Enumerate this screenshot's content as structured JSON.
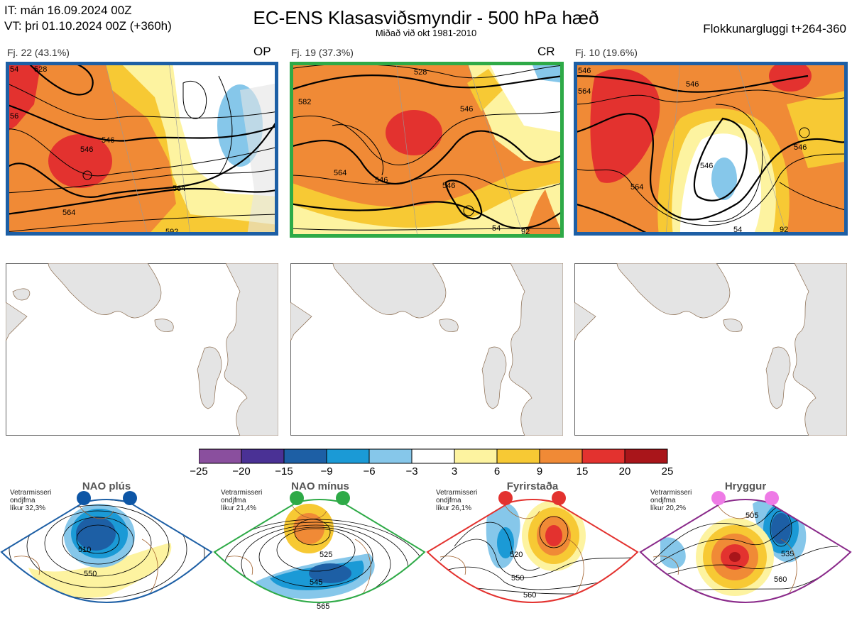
{
  "header": {
    "it_line": "IT: mán 16.09.2024 00Z",
    "vt_line": "VT: þri 01.10.2024 00Z  (+360h)",
    "title": "EC-ENS Klasasviðsmyndir - 500 hPa hæð",
    "subtitle": "Miðað við okt 1981-2010",
    "window": "Flokkunargluggi t+264-360"
  },
  "clusters": [
    {
      "label": "Fj. 22 (43.1%)",
      "tag": "OP",
      "frame_color": "#1d5fa5",
      "contour_labels": [
        "546",
        "546",
        "564",
        "564",
        "528",
        "54",
        "56",
        "592"
      ]
    },
    {
      "label": "Fj. 19 (37.3%)",
      "tag": "CR",
      "frame_color": "#2eaa47",
      "contour_labels": [
        "582",
        "546",
        "564",
        "546",
        "546",
        "528",
        "54",
        "92"
      ]
    },
    {
      "label": "Fj. 10 (19.6%)",
      "tag": "",
      "frame_color": "#1d5fa5",
      "contour_labels": [
        "546",
        "564",
        "546",
        "546",
        "564",
        "546",
        "54",
        "92"
      ]
    }
  ],
  "colorbar": {
    "labels": [
      "−25",
      "−20",
      "−15",
      "−9",
      "−6",
      "−3",
      "3",
      "6",
      "9",
      "15",
      "20",
      "25"
    ],
    "colors": [
      "#8a4f9e",
      "#4a3195",
      "#1d5fa5",
      "#1b9ad6",
      "#86c7ea",
      "#ffffff",
      "#fdf3a0",
      "#f7c934",
      "#f08a36",
      "#e3322f",
      "#a9151a"
    ]
  },
  "regimes": [
    {
      "name": "NAO plús",
      "info": [
        "Vetrarmisseri",
        "ondjfma",
        "líkur 32,3%"
      ],
      "color": "#1d5fa5",
      "dot": "#0d56a6",
      "contour_labels": [
        "510",
        "550"
      ]
    },
    {
      "name": "NAO mínus",
      "info": [
        "Vetrarmisseri",
        "ondjfma",
        "líkur 21,4%"
      ],
      "color": "#2eaa47",
      "dot": "#2eaa47",
      "contour_labels": [
        "525",
        "545",
        "565"
      ]
    },
    {
      "name": "Fyrirstaða",
      "info": [
        "Vetrarmisseri",
        "ondjfma",
        "líkur 26,1%"
      ],
      "color": "#e3322f",
      "dot": "#e3322f",
      "contour_labels": [
        "520",
        "550",
        "560"
      ]
    },
    {
      "name": "Hryggur",
      "info": [
        "Vetrarmisseri",
        "ondjfma",
        "líkur 20,2%"
      ],
      "color": "#8a2a8a",
      "dot": "#ee7be6",
      "contour_labels": [
        "505",
        "535",
        "560"
      ]
    }
  ],
  "chart_data": {
    "type": "heatmap",
    "title": "EC-ENS Klasasviðsmyndir - 500 hPa hæð",
    "subtitle": "Miðað við okt 1981-2010",
    "color_scale_bounds": [
      -25,
      -20,
      -15,
      -9,
      -6,
      -3,
      3,
      6,
      9,
      15,
      20,
      25
    ],
    "clusters": [
      {
        "name": "Fj. 22",
        "percent": 43.1,
        "tag": "OP"
      },
      {
        "name": "Fj. 19",
        "percent": 37.3,
        "tag": "CR"
      },
      {
        "name": "Fj. 10",
        "percent": 19.6
      }
    ],
    "regimes": [
      {
        "name": "NAO plús",
        "likelihood_percent": 32.3
      },
      {
        "name": "NAO mínus",
        "likelihood_percent": 21.4
      },
      {
        "name": "Fyrirstaða",
        "likelihood_percent": 26.1
      },
      {
        "name": "Hryggur",
        "likelihood_percent": 20.2
      }
    ]
  }
}
